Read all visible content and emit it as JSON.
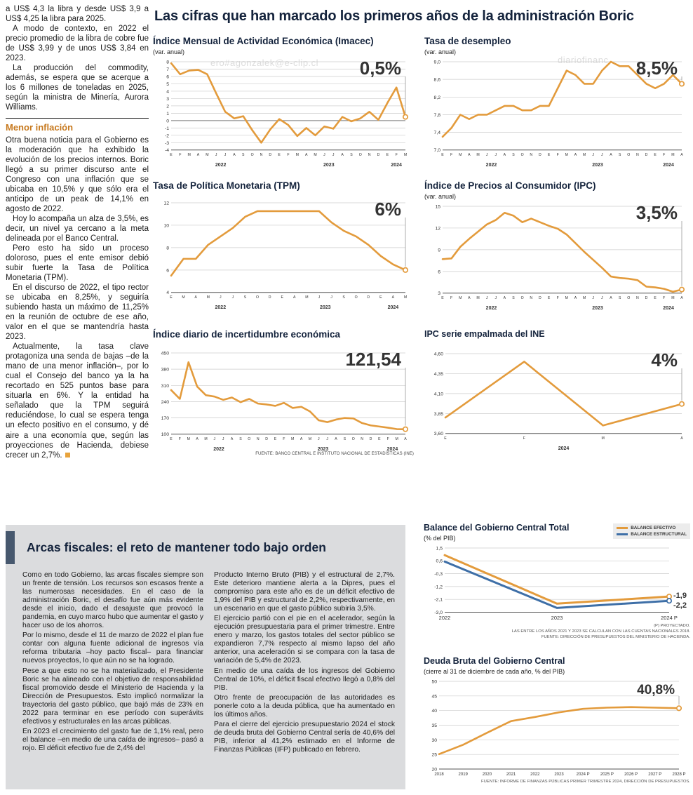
{
  "main_title": "Las cifras que han marcado los primeros años de la administración Boric",
  "colors": {
    "orange": "#E39B3C",
    "blue": "#3E6FA7",
    "navy": "#14233C",
    "heading_orange": "#C7791E",
    "panel_gray": "#DBDCDE",
    "accent_bar": "#47586E"
  },
  "watermarks": [
    "ero#agonzalek@e-clip.cl",
    "diariofinanc",
    "ero#agonzalek@e-clip.cl"
  ],
  "article": {
    "top": [
      "a US$ 4,3 la libra y desde US$ 3,9 a US$ 4,25 la libra para 2025.",
      "A modo de contexto, en 2022 el precio promedio de la libra de cobre fue de US$ 3,99 y de unos US$ 3,84 en 2023.",
      "La producción del commodity, además, se espera que se acerque a los 6 millones de toneladas en 2025, según la ministra de Minería, Aurora Williams."
    ],
    "heading": "Menor inflación",
    "bottom": [
      "Otra buena noticia para el Gobierno es la moderación que ha exhibido la evolución de los precios internos. Boric llegó a su primer discurso ante el Congreso con una inflación que se ubicaba en 10,5% y que sólo era el anticipo de un peak de 14,1% en agosto de 2022.",
      "Hoy lo acompaña un alza de 3,5%, es decir, un nivel ya cercano a la meta delineada por el Banco Central.",
      "Pero esto ha sido un proceso doloroso, pues el ente emisor debió subir fuerte la Tasa de Política Monetaria (TPM).",
      "En el discurso de 2022, el tipo rector se ubicaba en 8,25%, y seguiría subiendo hasta un máximo de 11,25% en la reunión de octubre de ese año, valor en el que se mantendría hasta 2023.",
      "Actualmente, la tasa clave protagoniza una senda de bajas –de la mano de una menor inflación–, por lo cual el Consejo del banco ya la ha recortado en 525 puntos base para situarla en 6%. Y la entidad ha señalado que la TPM seguirá reduciéndose, lo cual se espera tenga un efecto positivo en el consumo, y dé aire a una economía que, según las proyecciones de Hacienda, debiese crecer un 2,7%."
    ]
  },
  "fiscal": {
    "title": "Arcas fiscales: el reto de mantener todo bajo orden",
    "col1": [
      "Como en todo Gobierno, las arcas fiscales siempre son un frente de tensión. Los recursos son escasos frente a las numerosas necesidades. En el caso de la administración Boric, el desafío fue aún más evidente desde el inicio, dado el desajuste que provocó la pandemia, en cuyo marco hubo que aumentar el gasto y hacer uso de los ahorros.",
      "Por lo mismo, desde el 11 de marzo de 2022 el plan fue contar con alguna fuente adicional de ingresos vía reforma tributaria –hoy pacto fiscal– para financiar nuevos proyectos, lo que aún no se ha logrado.",
      "Pese a que esto no se ha materializado, el Presidente Boric se ha alineado con el objetivo de responsabilidad fiscal promovido desde el Ministerio de Hacienda y la Dirección de Presupuestos. Esto implicó normalizar la trayectoria del gasto público, que bajó más de 23% en 2022 para terminar en ese período con superávits efectivos y estructurales en las arcas públicas.",
      "En 2023 el crecimiento del gasto fue de 1,1% real, pero el balance –en medio de una caída de ingresos– pasó a rojo. El déficit efectivo fue de 2,4% del"
    ],
    "col2": [
      "Producto Interno Bruto (PIB) y el estructural de 2,7%. Este deterioro mantiene alerta a la Dipres, pues el compromiso para este año es de un déficit efectivo de 1,9% del PIB y estructural de 2,2%, respectivamente, en un escenario en que el gasto público subiría 3,5%.",
      "El ejercicio partió con el pie en el acelerador, según la ejecución presupuestaria para el primer trimestre. Entre enero y marzo, los gastos totales del sector público se expandieron 7,7% respecto al mismo lapso del año anterior, una aceleración si se compara con la tasa de variación de 5,4% de 2023.",
      "En medio de una caída de los ingresos del Gobierno Central de 10%, el déficit fiscal efectivo llegó a 0,8% del PIB.",
      "Otro frente de preocupación de las autoridades es ponerle coto a la deuda pública, que ha aumentado en los últimos años.",
      "Para el cierre del ejercicio presupuestario 2024 el stock de deuda bruta del Gobierno Central sería de 40,6% del PIB, inferior al 41,2% estimado en el Informe de Finanzas Públicas (IFP) publicado en febrero."
    ]
  },
  "chart_data": [
    {
      "id": "imacec",
      "type": "line",
      "title": "Índice Mensual de Actividad Económica (Imacec)",
      "subtitle": "(var. anual)",
      "callout": "0,5%",
      "ylim": [
        -4,
        8
      ],
      "y_tick_values": [
        8,
        7,
        6,
        5,
        4,
        3,
        2,
        1,
        0,
        -1,
        -2,
        -3,
        -4
      ],
      "y_tick_labels": [
        "8",
        "7",
        "6",
        "5",
        "4",
        "3",
        "2",
        "1",
        "0",
        "-1",
        "-2",
        "-3",
        "-4"
      ],
      "dark_value": 0,
      "x_labels": [
        "E",
        "F",
        "M",
        "A",
        "M",
        "J",
        "J",
        "A",
        "S",
        "O",
        "N",
        "D",
        "E",
        "F",
        "M",
        "A",
        "M",
        "J",
        "J",
        "A",
        "S",
        "O",
        "N",
        "D",
        "E",
        "F",
        "M"
      ],
      "year_groups": [
        {
          "label": "2022",
          "from": 0,
          "to": 11
        },
        {
          "label": "2023",
          "from": 12,
          "to": 23
        },
        {
          "label": "2024",
          "from": 24,
          "to": 26
        }
      ],
      "series": [
        {
          "name": "Imacec var. anual",
          "color": "#E39B3C",
          "values": [
            7.8,
            6.3,
            6.8,
            6.9,
            6.3,
            3.7,
            1.2,
            0.3,
            0.6,
            -1.3,
            -3.0,
            -1.2,
            0.2,
            -0.6,
            -2.1,
            -1.0,
            -2.0,
            -0.8,
            -1.1,
            0.5,
            -0.1,
            0.3,
            1.2,
            0.1,
            2.4,
            4.5,
            0.5
          ]
        }
      ]
    },
    {
      "id": "desempleo",
      "type": "line",
      "title": "Tasa de desempleo",
      "subtitle": "(var. anual)",
      "callout": "8,5%",
      "ylim": [
        7.0,
        9.0
      ],
      "y_tick_values": [
        9.0,
        8.6,
        8.2,
        7.8,
        7.4,
        7.0
      ],
      "y_tick_labels": [
        "9,0",
        "8,6",
        "8,2",
        "7,8",
        "7,4",
        "7,0"
      ],
      "x_labels": [
        "E",
        "F",
        "M",
        "A",
        "M",
        "J",
        "J",
        "A",
        "S",
        "O",
        "N",
        "D",
        "E",
        "F",
        "M",
        "A",
        "M",
        "J",
        "J",
        "A",
        "S",
        "O",
        "N",
        "D",
        "E",
        "F",
        "M",
        "A"
      ],
      "year_groups": [
        {
          "label": "2022",
          "from": 0,
          "to": 11
        },
        {
          "label": "2023",
          "from": 12,
          "to": 23
        },
        {
          "label": "2024",
          "from": 24,
          "to": 27
        }
      ],
      "series": [
        {
          "name": "Tasa de desempleo",
          "color": "#E39B3C",
          "values": [
            7.3,
            7.5,
            7.8,
            7.7,
            7.8,
            7.8,
            7.9,
            8.0,
            8.0,
            7.9,
            7.9,
            8.0,
            8.0,
            8.4,
            8.8,
            8.7,
            8.5,
            8.5,
            8.8,
            9.0,
            8.9,
            8.9,
            8.7,
            8.5,
            8.4,
            8.5,
            8.7,
            8.5
          ]
        }
      ]
    },
    {
      "id": "tpm",
      "type": "line",
      "title": "Tasa de Política Monetaria (TPM)",
      "callout": "6%",
      "ylim": [
        4,
        12
      ],
      "y_tick_values": [
        12,
        10,
        8,
        6,
        4
      ],
      "y_tick_labels": [
        "12",
        "10",
        "8",
        "6",
        "4"
      ],
      "x_labels": [
        "E",
        "M",
        "A",
        "M",
        "J",
        "J",
        "S",
        "O",
        "D",
        "E",
        "A",
        "M",
        "J",
        "J",
        "S",
        "O",
        "D",
        "E",
        "A",
        "M"
      ],
      "year_groups": [
        {
          "label": "2022",
          "from": 0,
          "to": 8
        },
        {
          "label": "2023",
          "from": 9,
          "to": 16
        },
        {
          "label": "2024",
          "from": 17,
          "to": 19
        }
      ],
      "series": [
        {
          "name": "TPM",
          "color": "#E39B3C",
          "values": [
            5.5,
            7.0,
            7.0,
            8.25,
            9.0,
            9.75,
            10.75,
            11.25,
            11.25,
            11.25,
            11.25,
            11.25,
            11.25,
            10.25,
            9.5,
            9.0,
            8.25,
            7.25,
            6.5,
            6.0
          ]
        }
      ]
    },
    {
      "id": "ipc",
      "type": "line",
      "title": "Índice de Precios al Consumidor (IPC)",
      "subtitle": "(var. anual)",
      "callout": "3,5%",
      "ylim": [
        3,
        15
      ],
      "y_tick_values": [
        15,
        12,
        9,
        6,
        3
      ],
      "y_tick_labels": [
        "15",
        "12",
        "9",
        "6",
        "3"
      ],
      "x_labels": [
        "E",
        "F",
        "M",
        "A",
        "M",
        "J",
        "J",
        "A",
        "S",
        "O",
        "N",
        "D",
        "E",
        "F",
        "M",
        "A",
        "M",
        "J",
        "J",
        "A",
        "S",
        "O",
        "N",
        "D",
        "E",
        "F",
        "M",
        "A"
      ],
      "year_groups": [
        {
          "label": "2022",
          "from": 0,
          "to": 11
        },
        {
          "label": "2023",
          "from": 12,
          "to": 23
        },
        {
          "label": "2024",
          "from": 24,
          "to": 27
        }
      ],
      "series": [
        {
          "name": "IPC var. anual",
          "color": "#E39B3C",
          "values": [
            7.7,
            7.8,
            9.4,
            10.5,
            11.5,
            12.5,
            13.1,
            14.1,
            13.7,
            12.8,
            13.3,
            12.8,
            12.3,
            11.9,
            11.1,
            9.9,
            8.7,
            7.6,
            6.5,
            5.3,
            5.1,
            5.0,
            4.8,
            3.9,
            3.8,
            3.6,
            3.2,
            3.5
          ]
        }
      ]
    },
    {
      "id": "incertidumbre",
      "type": "line",
      "title": "Índice diario de incertidumbre económica",
      "callout": "121,54",
      "source": "FUENTE: BANCO CENTRAL E INSTITUTO NACIONAL DE ESTADÍSTICAS (INE)",
      "ylim": [
        100,
        450
      ],
      "y_tick_values": [
        450,
        380,
        310,
        240,
        170,
        100
      ],
      "y_tick_labels": [
        "450",
        "380",
        "310",
        "240",
        "170",
        "100"
      ],
      "x_labels": [
        "E",
        "F",
        "M",
        "A",
        "M",
        "J",
        "J",
        "A",
        "S",
        "O",
        "N",
        "D",
        "E",
        "F",
        "M",
        "A",
        "M",
        "J",
        "J",
        "A",
        "S",
        "O",
        "N",
        "D",
        "E",
        "F",
        "M",
        "A"
      ],
      "year_groups": [
        {
          "label": "2022",
          "from": 0,
          "to": 11
        },
        {
          "label": "2023",
          "from": 12,
          "to": 23
        },
        {
          "label": "2024",
          "from": 24,
          "to": 27
        }
      ],
      "series": [
        {
          "name": "Incertidumbre económica",
          "color": "#E39B3C",
          "values": [
            290,
            252,
            410,
            305,
            268,
            262,
            248,
            258,
            238,
            252,
            232,
            228,
            222,
            235,
            213,
            218,
            198,
            160,
            152,
            163,
            170,
            168,
            148,
            138,
            133,
            128,
            122,
            121.54
          ]
        }
      ]
    },
    {
      "id": "ipc_ine",
      "type": "line",
      "title": "IPC serie empalmada del INE",
      "callout": "4%",
      "ylim": [
        3.6,
        4.6
      ],
      "ml": 30,
      "y_tick_values": [
        4.6,
        4.35,
        4.1,
        3.85,
        3.6
      ],
      "y_tick_labels": [
        "4,60",
        "4,35",
        "4,10",
        "3,85",
        "3,60"
      ],
      "x_labels": [
        "E",
        "F",
        "M",
        "A"
      ],
      "year_groups": [
        {
          "label": "2024",
          "from": 0,
          "to": 3
        }
      ],
      "series": [
        {
          "name": "IPC serie empalmada",
          "color": "#E39B3C",
          "values": [
            3.8,
            4.5,
            3.7,
            3.97
          ]
        }
      ]
    },
    {
      "id": "balance",
      "type": "line",
      "title": "Balance del Gobierno Central Total",
      "subtitle": "(% del PIB)",
      "legend": [
        "BALANCE EFECTIVO",
        "BALANCE ESTRUCTURAL"
      ],
      "notes": [
        "(P) PROYECTADO.",
        "LAS ENTRE LOS AÑOS 2021 Y 2023 SE CALCULAN CON LAS CUENTAS NACIONALES 2018.",
        "FUENTE: DIRECCIÓN DE PRESUPUESTOS DEL MINISTERIO DE HACIENDA."
      ],
      "ylim": [
        -3.0,
        1.5
      ],
      "ml": 30,
      "mr": 30,
      "xs": 7.5,
      "y_tick_values": [
        1.5,
        0.6,
        -0.3,
        -1.2,
        -2.1,
        -3.0
      ],
      "y_tick_labels": [
        "1,5",
        "0,6",
        "-0,3",
        "-1,2",
        "-2,1",
        "-3,0"
      ],
      "x_labels": [
        "2022",
        "2023",
        "2024 P"
      ],
      "series": [
        {
          "name": "Balance efectivo",
          "color": "#E39B3C",
          "w": 3,
          "values": [
            1.0,
            -2.4,
            -1.9
          ],
          "end_label": "-1,9",
          "label_dy": -1
        },
        {
          "name": "Balance estructural",
          "color": "#3E6FA7",
          "w": 3,
          "values": [
            0.55,
            -2.7,
            -2.2
          ],
          "end_label": "-2,2",
          "label_dy": 7
        }
      ]
    },
    {
      "id": "deuda",
      "type": "line",
      "title": "Deuda Bruta del Gobierno Central",
      "subtitle": "(cierre al 31 de diciembre de cada año, % del PIB)",
      "callout": "40,8%",
      "callout_size": 19,
      "source": "FUENTE: INFORME DE FINANZAS PÚBLICAS PRIMER TRIMESTRE 2024, DIRECCIÓN DE PRESUPUESTOS.",
      "ylim": [
        20,
        50
      ],
      "ml": 22,
      "mr": 16,
      "xs": 6,
      "y_tick_values": [
        50,
        45,
        40,
        35,
        30,
        25,
        20
      ],
      "y_tick_labels": [
        "50",
        "45",
        "40",
        "35",
        "30",
        "25",
        "20"
      ],
      "x_labels": [
        "2018",
        "2019",
        "2020",
        "2021",
        "2022",
        "2023",
        "2024 P",
        "2025 P",
        "2026 P",
        "2027 P",
        "2028 P"
      ],
      "series": [
        {
          "name": "Deuda bruta % del PIB",
          "color": "#E39B3C",
          "values": [
            25.1,
            28.3,
            32.4,
            36.4,
            37.8,
            39.4,
            40.6,
            41.0,
            41.2,
            41.0,
            40.8
          ]
        }
      ]
    }
  ]
}
